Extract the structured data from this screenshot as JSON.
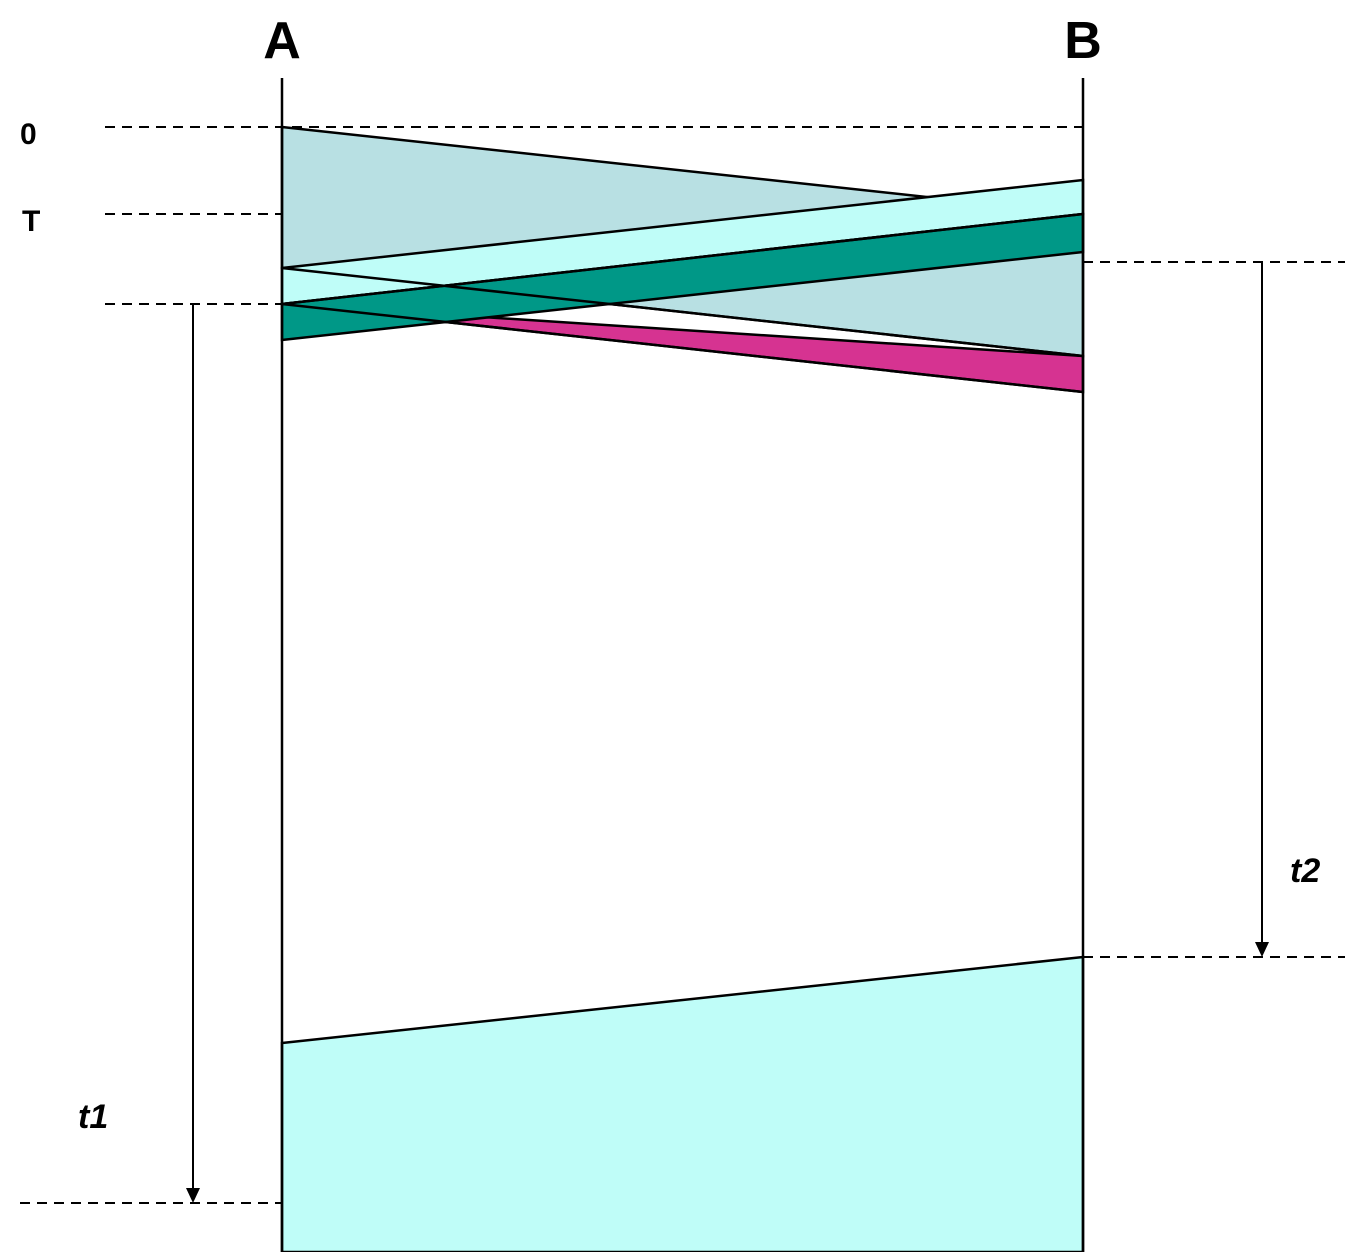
{
  "nodes": {
    "a": "A",
    "b": "B"
  },
  "time_labels": {
    "zero": "0",
    "t": "T"
  },
  "durations": {
    "t1": "t1",
    "t2": "t2"
  },
  "colors": {
    "light_teal": "#b8e0e3",
    "light_cyan": "#bffdf8",
    "dark_teal": "#009887",
    "magenta": "#d63391",
    "line": "#000000"
  }
}
